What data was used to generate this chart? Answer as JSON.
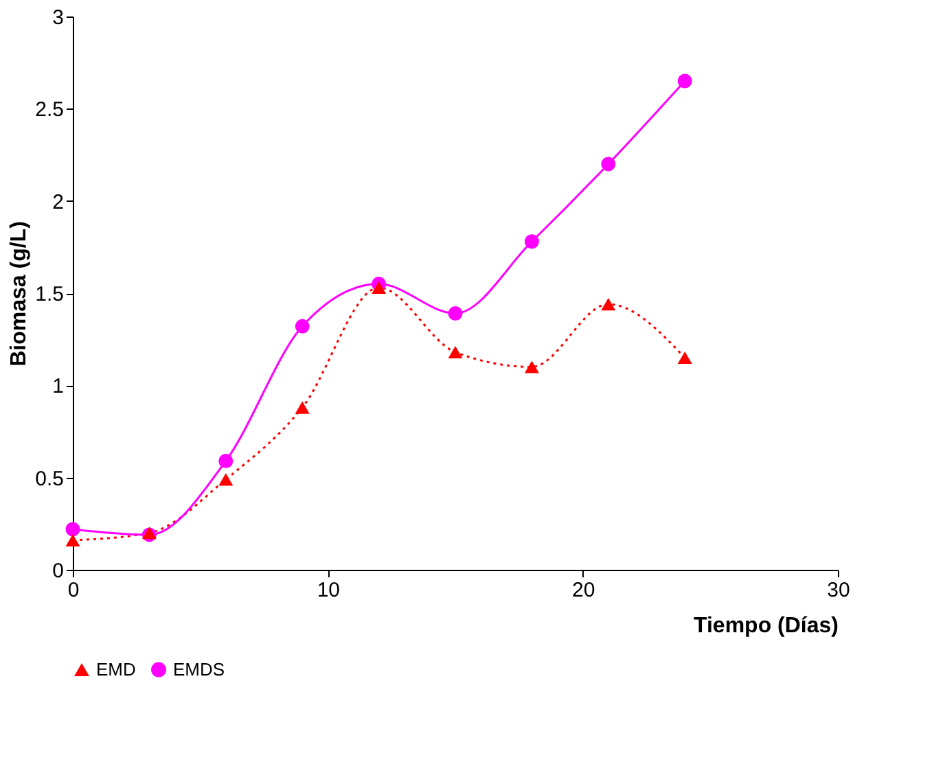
{
  "chart_data": {
    "type": "line",
    "xlabel": "Tiempo (Días)",
    "ylabel": "Biomasa (g/L)",
    "x": [
      0,
      3,
      6,
      9,
      12,
      15,
      18,
      21,
      24
    ],
    "xlim": [
      0,
      30
    ],
    "xticks": [
      0,
      10,
      20,
      30
    ],
    "ylim": [
      0,
      3
    ],
    "yticks": [
      0,
      0.5,
      1,
      1.5,
      2,
      2.5,
      3
    ],
    "grid": false,
    "legend": "bottom",
    "series": [
      {
        "name": "EMD",
        "color": "#ff0000",
        "marker": "triangle",
        "line_style": "dotted",
        "values": [
          0.16,
          0.2,
          0.49,
          0.88,
          1.53,
          1.18,
          1.1,
          1.44,
          1.15
        ]
      },
      {
        "name": "EMDS",
        "color": "#ff00ff",
        "marker": "circle",
        "line_style": "solid",
        "values": [
          0.22,
          0.19,
          0.59,
          1.32,
          1.55,
          1.39,
          1.78,
          2.2,
          2.65
        ]
      }
    ]
  }
}
